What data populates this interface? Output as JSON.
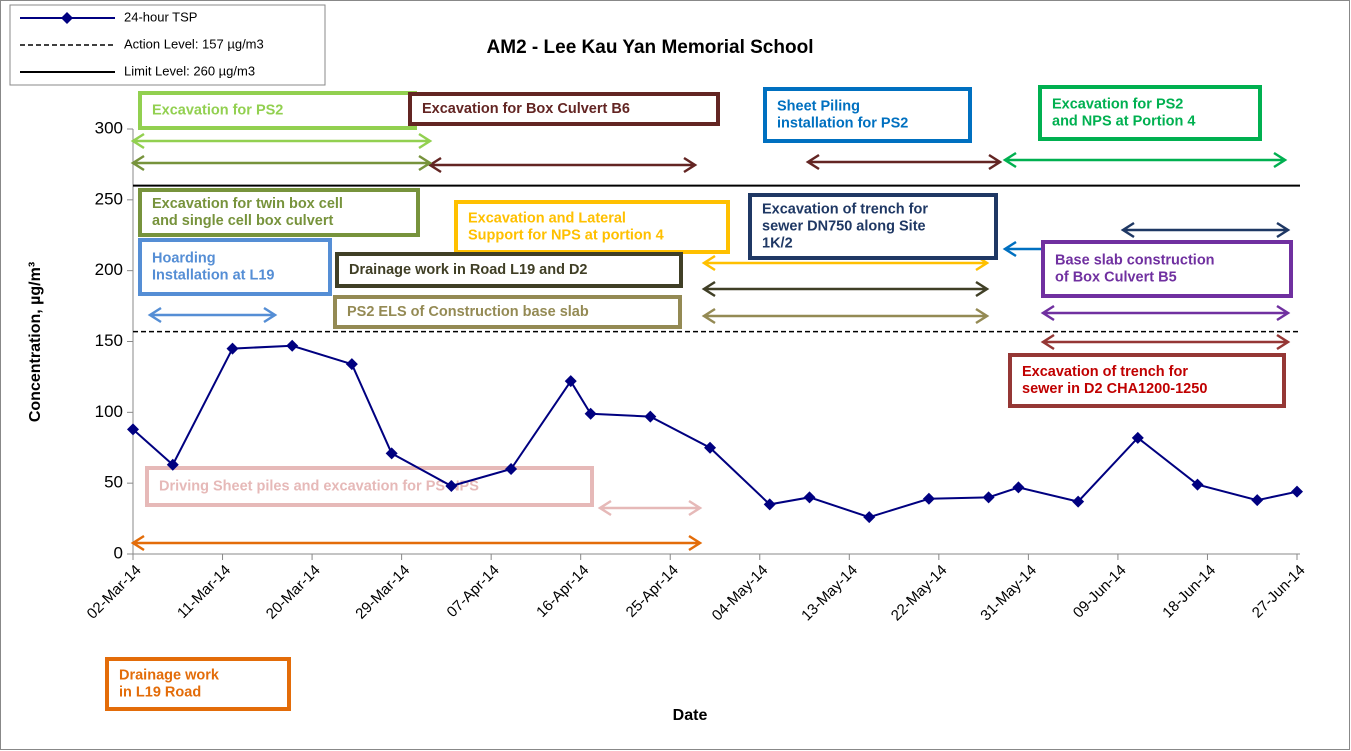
{
  "chart_data": {
    "type": "line",
    "title": "AM2 - Lee Kau Yan Memorial School",
    "xlabel": "Date",
    "ylabel": "Concentration, µg/m³",
    "x": [
      "02-Mar-14",
      "06-Mar-14",
      "12-Mar-14",
      "18-Mar-14",
      "24-Mar-14",
      "28-Mar-14",
      "03-Apr-14",
      "09-Apr-14",
      "15-Apr-14",
      "17-Apr-14",
      "23-Apr-14",
      "29-Apr-14",
      "05-May-14",
      "09-May-14",
      "15-May-14",
      "21-May-14",
      "27-May-14",
      "30-May-14",
      "05-Jun-14",
      "11-Jun-14",
      "17-Jun-14",
      "23-Jun-14",
      "27-Jun-14"
    ],
    "series": [
      {
        "name": "24-hour TSP",
        "color": "#000080",
        "values": [
          88,
          63,
          145,
          147,
          134,
          71,
          48,
          60,
          122,
          99,
          97,
          75,
          35,
          40,
          26,
          39,
          40,
          47,
          37,
          82,
          49,
          38,
          44
        ]
      }
    ],
    "action_level": 157,
    "action_label": "Action Level: 157 µg/m3",
    "limit_level": 260,
    "limit_label": "Limit Level: 260 µg/m3",
    "xlim": [
      "02-Mar-14",
      "27-Jun-14"
    ],
    "xticks": [
      "02-Mar-14",
      "11-Mar-14",
      "20-Mar-14",
      "29-Mar-14",
      "07-Apr-14",
      "16-Apr-14",
      "25-Apr-14",
      "04-May-14",
      "13-May-14",
      "22-May-14",
      "31-May-14",
      "09-Jun-14",
      "18-Jun-14",
      "27-Jun-14"
    ],
    "ylim": [
      0,
      300
    ],
    "yticks": [
      0,
      50,
      100,
      150,
      200,
      250,
      300
    ],
    "grid": false,
    "legend": "upper left",
    "annotations": [
      {
        "lines": [
          "Excavation for PS2"
        ],
        "color": "#92d050"
      },
      {
        "lines": [
          "Excavation for Box Culvert B6"
        ],
        "color": "#632523"
      },
      {
        "lines": [
          "Sheet Piling",
          "installation for PS2"
        ],
        "color": "#0070c0"
      },
      {
        "lines": [
          "Excavation for PS2",
          "and NPS at Portion 4"
        ],
        "color": "#00b050"
      },
      {
        "lines": [
          "Excavation for twin box cell",
          "and single cell box culvert"
        ],
        "color": "#77933c"
      },
      {
        "lines": [
          "Excavation and Lateral",
          "Support for NPS at portion 4"
        ],
        "color": "#ffc000"
      },
      {
        "lines": [
          "Excavation of trench for",
          "sewer DN750 along Site",
          "1K/2"
        ],
        "color": "#1f3864"
      },
      {
        "lines": [
          "Hoarding",
          "Installation at L19"
        ],
        "color": "#558ed5"
      },
      {
        "lines": [
          "Drainage work in Road L19 and D2"
        ],
        "color": "#403f26"
      },
      {
        "lines": [
          "Base slab construction",
          "of Box Culvert B5"
        ],
        "color": "#7030a0"
      },
      {
        "lines": [
          "PS2 ELS of Construction base slab"
        ],
        "color": "#948a54"
      },
      {
        "lines": [
          "Excavation of trench for",
          "sewer in D2 CHA1200-1250"
        ],
        "color": "#c00000"
      },
      {
        "lines": [
          "Driving Sheet piles  and excavation for PS NPS"
        ],
        "color": "#e6b9b8"
      },
      {
        "lines": [
          "Drainage work",
          "in L19 Road"
        ],
        "color": "#e36c09"
      }
    ]
  }
}
